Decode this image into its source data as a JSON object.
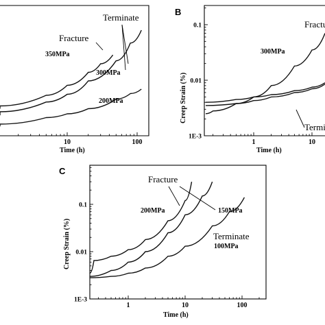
{
  "chart_data": [
    {
      "panel": "",
      "type": "line",
      "xlabel": "Time (h)",
      "ylabel": "",
      "x_scale": "log",
      "xlim": [
        0.1,
        120
      ],
      "ylim": [
        0.0015,
        0.2
      ],
      "x_ticks": [
        {
          "v": 10,
          "label": "10"
        },
        {
          "v": 100,
          "label": "100"
        }
      ],
      "series": [
        {
          "name": "350MPa",
          "end": "Fracture",
          "points": [
            [
              0.1,
              0.0045
            ],
            [
              1,
              0.005
            ],
            [
              5,
              0.0075
            ],
            [
              10,
              0.011
            ],
            [
              20,
              0.018
            ],
            [
              30,
              0.025
            ],
            [
              45,
              0.035
            ]
          ]
        },
        {
          "name": "300MPa",
          "end": "Terminate",
          "points": [
            [
              0.1,
              0.0035
            ],
            [
              1,
              0.004
            ],
            [
              5,
              0.0058
            ],
            [
              10,
              0.0078
            ],
            [
              20,
              0.013
            ],
            [
              50,
              0.028
            ],
            [
              80,
              0.055
            ],
            [
              115,
              0.09
            ]
          ]
        },
        {
          "name": "200MPa",
          "end": "Terminate",
          "points": [
            [
              0.1,
              0.0023
            ],
            [
              1,
              0.0025
            ],
            [
              5,
              0.0032
            ],
            [
              10,
              0.0037
            ],
            [
              20,
              0.0045
            ],
            [
              50,
              0.0065
            ],
            [
              80,
              0.008
            ],
            [
              115,
              0.0095
            ]
          ]
        }
      ],
      "annotations": [
        "Terminate",
        "Fracture",
        "350MPa",
        "300MPa",
        "200MPa"
      ]
    },
    {
      "panel": "B",
      "type": "line",
      "xlabel": "Time (h)",
      "ylabel": "Creep Strain (%)",
      "x_scale": "log",
      "y_scale": "log",
      "xlim": [
        0.15,
        25
      ],
      "ylim": [
        0.001,
        0.2
      ],
      "x_ticks": [
        {
          "v": 1,
          "label": "1"
        },
        {
          "v": 10,
          "label": "10"
        }
      ],
      "y_ticks": [
        {
          "v": 0.1,
          "label": "0.1"
        },
        {
          "v": 0.01,
          "label": "0.01"
        },
        {
          "v": 0.001,
          "label": "1E-3"
        }
      ],
      "series": [
        {
          "name": "300MPa",
          "end": "Fracture",
          "points": [
            [
              0.15,
              0.0025
            ],
            [
              0.2,
              0.0028
            ],
            [
              0.5,
              0.0038
            ],
            [
              1,
              0.005
            ],
            [
              2,
              0.008
            ],
            [
              5,
              0.018
            ],
            [
              10,
              0.035
            ],
            [
              20,
              0.07
            ]
          ]
        },
        {
          "name": "",
          "end": "Terminate",
          "points": [
            [
              0.15,
              0.004
            ],
            [
              0.5,
              0.0045
            ],
            [
              1,
              0.005
            ],
            [
              2,
              0.0055
            ],
            [
              5,
              0.0065
            ],
            [
              10,
              0.0075
            ],
            [
              20,
              0.009
            ]
          ]
        },
        {
          "name": "",
          "end": "Terminate",
          "points": [
            [
              0.15,
              0.0035
            ],
            [
              0.5,
              0.0038
            ],
            [
              1,
              0.0043
            ],
            [
              2,
              0.005
            ],
            [
              5,
              0.006
            ],
            [
              10,
              0.007
            ],
            [
              20,
              0.0085
            ]
          ]
        }
      ],
      "annotations": [
        "Fractu",
        "300MPa",
        "Termi"
      ]
    },
    {
      "panel": "C",
      "type": "line",
      "xlabel": "Time (h)",
      "ylabel": "Creep Strain (%)",
      "x_scale": "log",
      "y_scale": "log",
      "xlim": [
        0.2,
        200
      ],
      "ylim": [
        0.001,
        0.5
      ],
      "x_ticks": [
        {
          "v": 1,
          "label": "1"
        },
        {
          "v": 10,
          "label": "10"
        },
        {
          "v": 100,
          "label": "100"
        }
      ],
      "y_ticks": [
        {
          "v": 0.1,
          "label": "0.1"
        },
        {
          "v": 0.01,
          "label": "0.01"
        },
        {
          "v": 0.001,
          "label": "1E-3"
        }
      ],
      "series": [
        {
          "name": "200MPa",
          "end": "Fracture",
          "points": [
            [
              0.2,
              0.0035
            ],
            [
              0.25,
              0.0065
            ],
            [
              0.5,
              0.008
            ],
            [
              1,
              0.011
            ],
            [
              2,
              0.018
            ],
            [
              5,
              0.045
            ],
            [
              10,
              0.12
            ],
            [
              13,
              0.3
            ]
          ]
        },
        {
          "name": "150MPa",
          "end": "Fracture",
          "points": [
            [
              0.2,
              0.003
            ],
            [
              0.5,
              0.004
            ],
            [
              1,
              0.006
            ],
            [
              2,
              0.01
            ],
            [
              5,
              0.025
            ],
            [
              10,
              0.06
            ],
            [
              20,
              0.15
            ],
            [
              30,
              0.3
            ]
          ]
        },
        {
          "name": "100MPa",
          "end": "Terminate",
          "points": [
            [
              0.2,
              0.0028
            ],
            [
              0.5,
              0.003
            ],
            [
              1,
              0.0035
            ],
            [
              2,
              0.0045
            ],
            [
              5,
              0.008
            ],
            [
              10,
              0.013
            ],
            [
              30,
              0.035
            ],
            [
              60,
              0.07
            ],
            [
              110,
              0.14
            ]
          ]
        }
      ],
      "annotations": [
        "Fracture",
        "200MPa",
        "150MPa",
        "Terminate",
        "100MPa"
      ]
    }
  ]
}
